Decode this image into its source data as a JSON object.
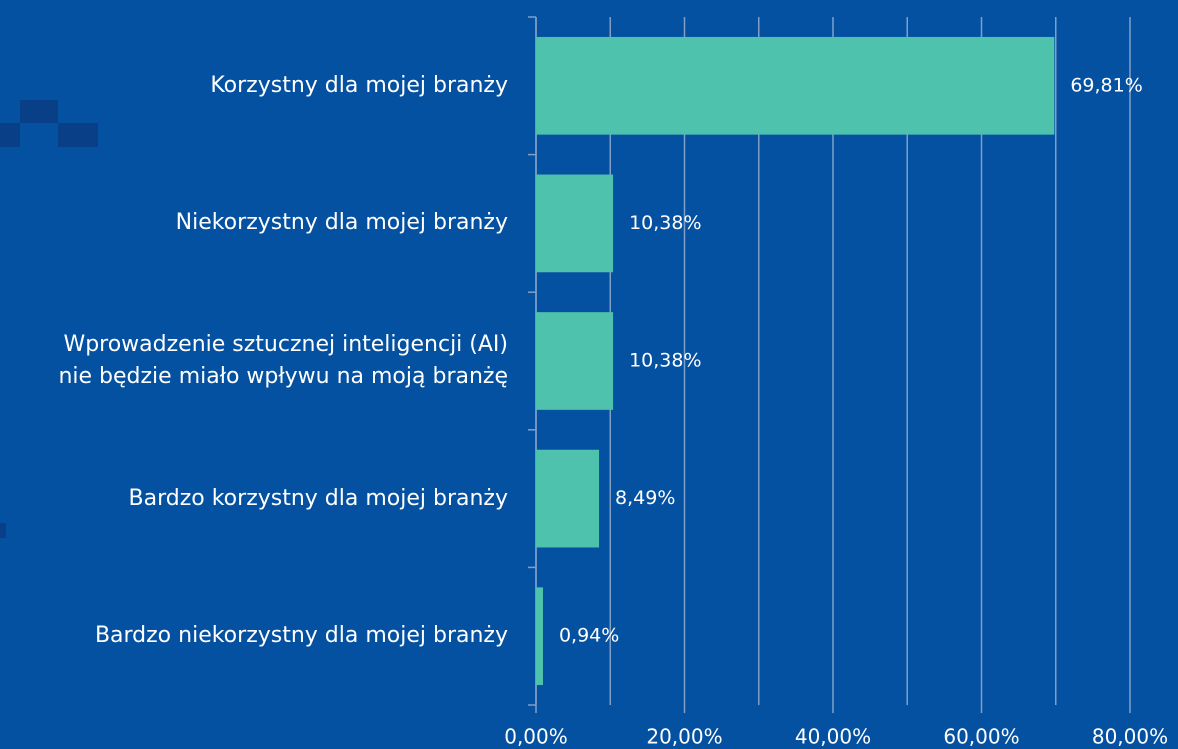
{
  "chart_data": {
    "type": "hbar",
    "categories": [
      "Korzystny dla mojej branży",
      "Niekorzystny dla mojej branży",
      "Wprowadzenie sztucznej inteligencji (AI)\nnie będzie miało wpływu na moją branżę",
      "Bardzo korzystny dla mojej branży",
      "Bardzo niekorzystny dla mojej branży"
    ],
    "values": [
      69.81,
      10.38,
      10.38,
      8.49,
      0.94
    ],
    "value_labels": [
      "69,81%",
      "10,38%",
      "10,38%",
      "8,49%",
      "0,94%"
    ],
    "color": "#4fc2ad",
    "xlim": [
      0,
      80
    ],
    "xticks": [
      {
        "value": 0,
        "label": "0,00%"
      },
      {
        "value": 20,
        "label": "20,00%"
      },
      {
        "value": 40,
        "label": "40,00%"
      },
      {
        "value": 60,
        "label": "60,00%"
      },
      {
        "value": 80,
        "label": "80,00%"
      }
    ],
    "minor_xticks": [
      10,
      30,
      50,
      70
    ],
    "grid": true
  }
}
